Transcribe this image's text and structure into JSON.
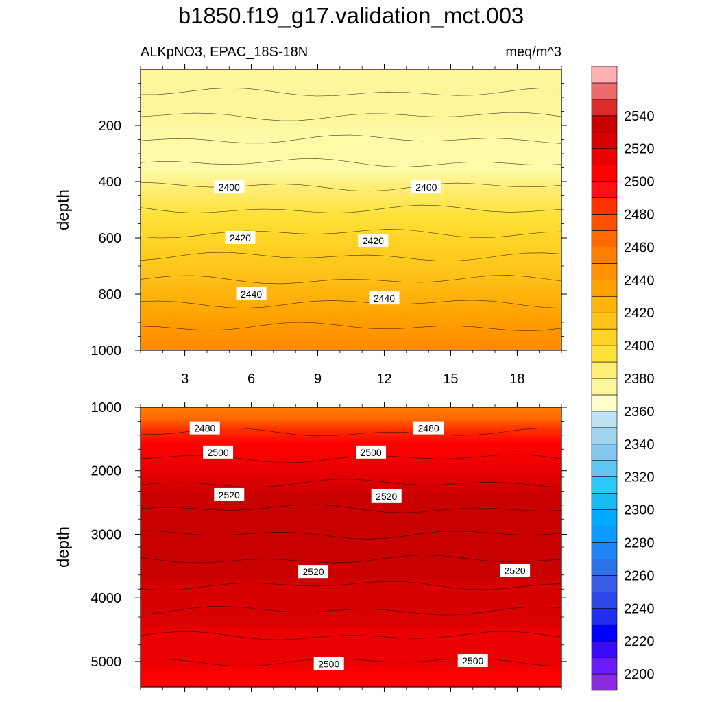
{
  "title": "b1850.f19_g17.validation_mct.003",
  "chart_data": {
    "type": "contour",
    "variable": "ALKpNO3, EPAC_18S-18N",
    "units": "meq/m^3",
    "x_ticks": [
      "3",
      "6",
      "9",
      "12",
      "15",
      "18"
    ],
    "panels": [
      {
        "name": "upper-panel",
        "ylabel": "depth",
        "ylim": [
          0,
          1000
        ],
        "y_ticks": [
          "200",
          "400",
          "600",
          "800",
          "1000"
        ],
        "contour_labels": [
          {
            "text": "2400",
            "x": 5.0,
            "y": 420
          },
          {
            "text": "2400",
            "x": 13.9,
            "y": 420
          },
          {
            "text": "2420",
            "x": 5.5,
            "y": 600
          },
          {
            "text": "2420",
            "x": 11.5,
            "y": 610
          },
          {
            "text": "2440",
            "x": 6.0,
            "y": 800
          },
          {
            "text": "2440",
            "x": 12.0,
            "y": 815
          }
        ]
      },
      {
        "name": "lower-panel",
        "ylabel": "depth",
        "ylim": [
          1000,
          5400
        ],
        "y_ticks": [
          "1000",
          "2000",
          "3000",
          "4000",
          "5000"
        ],
        "contour_labels": [
          {
            "text": "2480",
            "x": 3.9,
            "y": 1330
          },
          {
            "text": "2480",
            "x": 14.0,
            "y": 1330
          },
          {
            "text": "2500",
            "x": 4.5,
            "y": 1710
          },
          {
            "text": "2500",
            "x": 11.4,
            "y": 1710
          },
          {
            "text": "2520",
            "x": 5.0,
            "y": 2380
          },
          {
            "text": "2520",
            "x": 12.1,
            "y": 2400
          },
          {
            "text": "2520",
            "x": 8.8,
            "y": 3590
          },
          {
            "text": "2520",
            "x": 17.9,
            "y": 3570
          },
          {
            "text": "2500",
            "x": 9.5,
            "y": 5040
          },
          {
            "text": "2500",
            "x": 16.0,
            "y": 4990
          }
        ]
      }
    ],
    "colorbar": {
      "tick_labels": [
        "2200",
        "2220",
        "2240",
        "2260",
        "2280",
        "2300",
        "2320",
        "2340",
        "2360",
        "2380",
        "2400",
        "2420",
        "2440",
        "2460",
        "2480",
        "2500",
        "2520",
        "2540"
      ],
      "colors": [
        "#8a2be2",
        "#6a1bff",
        "#3a0aff",
        "#0000ff",
        "#1e2fee",
        "#2f47e8",
        "#3a5fe6",
        "#2b72ea",
        "#1f86f5",
        "#0c9aff",
        "#00aaff",
        "#18baf4",
        "#2cc8fa",
        "#5ec6f1",
        "#84c6ec",
        "#a2d4ef",
        "#bde3f5",
        "#ffffcc",
        "#fff59a",
        "#ffee77",
        "#ffe13a",
        "#ffd223",
        "#ffc41a",
        "#ffb40e",
        "#ffa200",
        "#ff9100",
        "#ff7f00",
        "#ff6a00",
        "#ff5000",
        "#ff3000",
        "#ff1010",
        "#ff0000",
        "#ea0000",
        "#d80000",
        "#c80000",
        "#dd2b2b",
        "#ec6b6b",
        "#ffb0b0"
      ]
    }
  }
}
